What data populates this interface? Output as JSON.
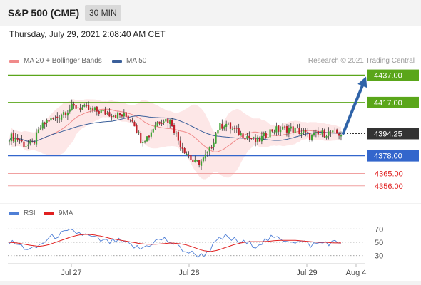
{
  "header": {
    "title": "S&P 500 (CME)",
    "interval": "30 MIN"
  },
  "datetime": "Thursday, July 29, 2021 2:08:40 AM CET",
  "legend": {
    "bollinger": {
      "label": "MA 20 + Bollinger Bands",
      "color": "#f08a8a"
    },
    "ma50": {
      "label": "MA 50",
      "color": "#3a5f9a"
    },
    "credit": "Research © 2021 Trading Central"
  },
  "rsi_legend": {
    "rsi": {
      "label": "RSI",
      "color": "#4f7fd6"
    },
    "ma9": {
      "label": "9MA",
      "color": "#e02020"
    }
  },
  "colors": {
    "resistance": "#5aa61a",
    "support": "#3366cc",
    "support_thin": "#f0a0a0",
    "support_label": "#e02020",
    "current": "#333333",
    "up_candle": "#3fa535",
    "down_candle": "#c0202a",
    "band_fill": "#fde3e3",
    "ma20": "#f08a8a",
    "ma50": "#3a5f9a",
    "arrow": "#2f63a8"
  },
  "chart_data": {
    "type": "candlestick",
    "x_labels": [
      "Jul 27",
      "Jul 28",
      "Jul 29",
      "Aug 4"
    ],
    "ylim": [
      4347,
      4442
    ],
    "current_price": {
      "label": "4394.25",
      "value": 4394.25
    },
    "resistance": [
      {
        "label": "4437.00",
        "value": 4437.0
      },
      {
        "label": "4417.00",
        "value": 4417.0
      }
    ],
    "support": [
      {
        "label": "4378.00",
        "value": 4378.0,
        "style": "box"
      },
      {
        "label": "4365.00",
        "value": 4365.0,
        "style": "text"
      },
      {
        "label": "4356.00",
        "value": 4356.0,
        "style": "text"
      }
    ],
    "arrow": {
      "from_value": 4394.5,
      "to_value": 4436.0
    },
    "close_path": [
      4392,
      4391,
      4386,
      4386,
      4398,
      4404,
      4405,
      4410,
      4413,
      4414,
      4412,
      4411,
      4410,
      4409,
      4408,
      4407,
      4405,
      4390,
      4392,
      4402,
      4405,
      4403,
      4388,
      4380,
      4372,
      4374,
      4382,
      4398,
      4402,
      4397,
      4394,
      4392,
      4388,
      4392,
      4397,
      4397,
      4398,
      4397,
      4395,
      4392,
      4393,
      4395,
      4394,
      4394.25
    ],
    "rsi": {
      "levels": [
        {
          "label": "70",
          "value": 70
        },
        {
          "label": "50",
          "value": 50
        },
        {
          "label": "30",
          "value": 30
        }
      ],
      "ylim": [
        20,
        80
      ],
      "rsi_values": [
        50,
        47,
        42,
        38,
        46,
        55,
        60,
        63,
        66,
        64,
        60,
        56,
        52,
        50,
        52,
        48,
        44,
        40,
        46,
        52,
        55,
        50,
        42,
        36,
        32,
        30,
        40,
        52,
        58,
        54,
        50,
        48,
        46,
        52,
        56,
        55,
        54,
        52,
        50,
        46,
        48,
        50,
        49,
        50
      ],
      "ma9_values": [
        50,
        49,
        47,
        45,
        44,
        46,
        50,
        54,
        58,
        61,
        62,
        61,
        59,
        56,
        54,
        52,
        50,
        48,
        47,
        47,
        48,
        49,
        48,
        46,
        42,
        38,
        36,
        38,
        42,
        46,
        49,
        51,
        51,
        51,
        52,
        53,
        53,
        53,
        52,
        51,
        50,
        50,
        49,
        49
      ]
    }
  }
}
